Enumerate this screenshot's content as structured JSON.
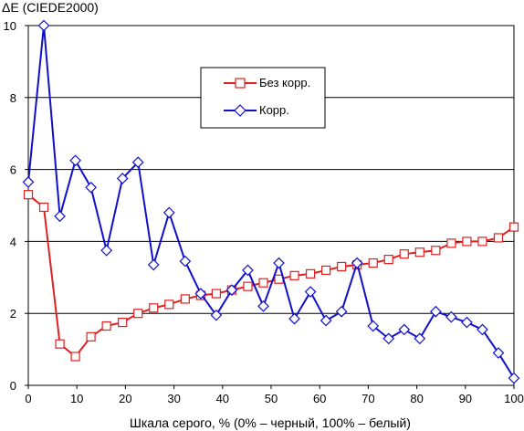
{
  "chart_data": {
    "type": "line",
    "title": "",
    "ylabel": "ΔE (CIEDE2000)",
    "xlabel": "Шкала серого, % (0% – черный, 100% – белый)",
    "xlim": [
      0,
      100
    ],
    "ylim": [
      0,
      10
    ],
    "x_ticks": [
      0,
      10,
      20,
      30,
      40,
      50,
      60,
      70,
      80,
      90,
      100
    ],
    "y_ticks": [
      0,
      2,
      4,
      6,
      8,
      10
    ],
    "grid": "horizontal",
    "legend_position": "top-center",
    "series": [
      {
        "name": "Без корр.",
        "color": "#e02020",
        "marker": "square",
        "x": [
          0,
          3.2,
          6.5,
          9.7,
          12.9,
          16.1,
          19.4,
          22.6,
          25.8,
          29.0,
          32.3,
          35.5,
          38.7,
          41.9,
          45.2,
          48.4,
          51.6,
          54.8,
          58.1,
          61.3,
          64.5,
          67.7,
          71.0,
          74.2,
          77.4,
          80.6,
          83.9,
          87.1,
          90.3,
          93.5,
          96.8,
          100
        ],
        "y": [
          5.3,
          4.95,
          1.15,
          0.8,
          1.35,
          1.65,
          1.75,
          2.0,
          2.15,
          2.25,
          2.4,
          2.5,
          2.55,
          2.65,
          2.75,
          2.85,
          2.95,
          3.05,
          3.1,
          3.2,
          3.3,
          3.35,
          3.4,
          3.5,
          3.65,
          3.7,
          3.75,
          3.95,
          4.0,
          4.0,
          4.1,
          4.4
        ]
      },
      {
        "name": "Корр.",
        "color": "#1010cc",
        "marker": "diamond",
        "x": [
          0,
          3.2,
          6.5,
          9.7,
          12.9,
          16.1,
          19.4,
          22.6,
          25.8,
          29.0,
          32.3,
          35.5,
          38.7,
          41.9,
          45.2,
          48.4,
          51.6,
          54.8,
          58.1,
          61.3,
          64.5,
          67.7,
          71.0,
          74.2,
          77.4,
          80.6,
          83.9,
          87.1,
          90.3,
          93.5,
          96.8,
          100
        ],
        "y": [
          5.65,
          10.0,
          4.7,
          6.25,
          5.5,
          3.75,
          5.75,
          6.2,
          3.35,
          4.8,
          3.45,
          2.55,
          1.95,
          2.65,
          3.2,
          2.2,
          3.4,
          1.85,
          2.6,
          1.8,
          2.05,
          3.4,
          1.65,
          1.3,
          1.55,
          1.3,
          2.05,
          1.9,
          1.75,
          1.55,
          0.9,
          0.2
        ]
      }
    ]
  }
}
